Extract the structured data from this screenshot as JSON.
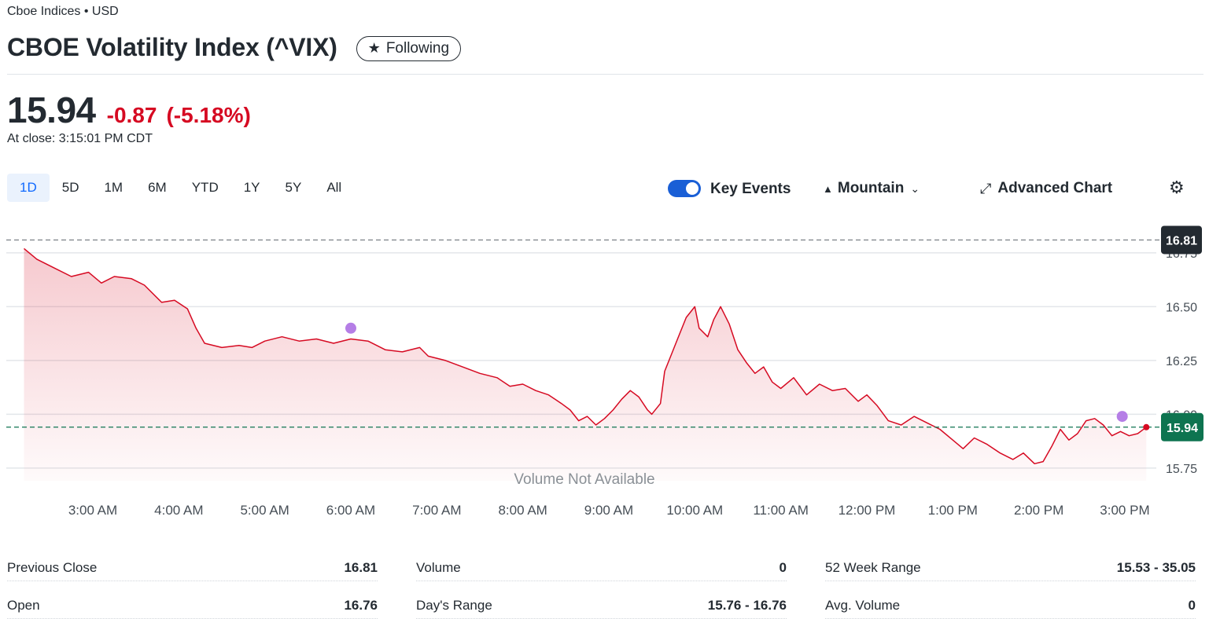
{
  "header": {
    "exchange": "Cboe Indices • USD",
    "title": "CBOE Volatility Index (^VIX)",
    "follow_label": "Following",
    "follow_icon": "star-icon"
  },
  "quote": {
    "price": "15.94",
    "change": "-0.87",
    "change_percent": "(-5.18%)",
    "close_time": "At close: 3:15:01 PM CDT",
    "change_color": "#d60a22"
  },
  "range_tabs": [
    "1D",
    "5D",
    "1M",
    "6M",
    "YTD",
    "1Y",
    "5Y",
    "All"
  ],
  "active_range": "1D",
  "toolbar": {
    "key_events_label": "Key Events",
    "key_events_on": true,
    "chart_type_label": "Mountain",
    "advanced_chart_label": "Advanced Chart",
    "settings_icon": "gear-icon"
  },
  "chart_data": {
    "type": "area",
    "y_ticks": [
      "16.75",
      "16.50",
      "16.25",
      "16.00",
      "15.75"
    ],
    "ylim": [
      15.68,
      16.83
    ],
    "x_ticks": [
      "3:00 AM",
      "4:00 AM",
      "5:00 AM",
      "6:00 AM",
      "7:00 AM",
      "8:00 AM",
      "9:00 AM",
      "10:00 AM",
      "11:00 AM",
      "12:00 PM",
      "1:00 PM",
      "2:00 PM",
      "3:00 PM"
    ],
    "x_hours": [
      3,
      4,
      5,
      6,
      7,
      8,
      9,
      10,
      11,
      12,
      13,
      14,
      15
    ],
    "previous_close": 16.81,
    "previous_close_label": "16.81",
    "last_price": 15.94,
    "last_price_label": "15.94",
    "volume_note": "Volume Not Available",
    "line_color": "#d60a22",
    "last_label_color": "#0e7450",
    "prev_close_label_color": "#232a31",
    "event_color": "#b57ee6",
    "events": [
      {
        "t": 6.0,
        "v": 16.4
      },
      {
        "t": 14.97,
        "v": 15.99
      }
    ],
    "series": [
      {
        "t": 2.2,
        "v": 16.77
      },
      {
        "t": 2.35,
        "v": 16.72
      },
      {
        "t": 2.55,
        "v": 16.68
      },
      {
        "t": 2.75,
        "v": 16.64
      },
      {
        "t": 2.95,
        "v": 16.66
      },
      {
        "t": 3.1,
        "v": 16.61
      },
      {
        "t": 3.25,
        "v": 16.64
      },
      {
        "t": 3.45,
        "v": 16.63
      },
      {
        "t": 3.6,
        "v": 16.6
      },
      {
        "t": 3.8,
        "v": 16.52
      },
      {
        "t": 3.95,
        "v": 16.53
      },
      {
        "t": 4.1,
        "v": 16.49
      },
      {
        "t": 4.2,
        "v": 16.4
      },
      {
        "t": 4.3,
        "v": 16.33
      },
      {
        "t": 4.5,
        "v": 16.31
      },
      {
        "t": 4.7,
        "v": 16.32
      },
      {
        "t": 4.85,
        "v": 16.31
      },
      {
        "t": 5.0,
        "v": 16.34
      },
      {
        "t": 5.2,
        "v": 16.36
      },
      {
        "t": 5.4,
        "v": 16.34
      },
      {
        "t": 5.6,
        "v": 16.35
      },
      {
        "t": 5.8,
        "v": 16.33
      },
      {
        "t": 6.0,
        "v": 16.35
      },
      {
        "t": 6.2,
        "v": 16.34
      },
      {
        "t": 6.4,
        "v": 16.3
      },
      {
        "t": 6.6,
        "v": 16.29
      },
      {
        "t": 6.8,
        "v": 16.31
      },
      {
        "t": 6.9,
        "v": 16.27
      },
      {
        "t": 7.1,
        "v": 16.25
      },
      {
        "t": 7.3,
        "v": 16.22
      },
      {
        "t": 7.5,
        "v": 16.19
      },
      {
        "t": 7.7,
        "v": 16.17
      },
      {
        "t": 7.85,
        "v": 16.13
      },
      {
        "t": 8.0,
        "v": 16.14
      },
      {
        "t": 8.15,
        "v": 16.11
      },
      {
        "t": 8.3,
        "v": 16.09
      },
      {
        "t": 8.45,
        "v": 16.05
      },
      {
        "t": 8.55,
        "v": 16.02
      },
      {
        "t": 8.65,
        "v": 15.97
      },
      {
        "t": 8.75,
        "v": 15.99
      },
      {
        "t": 8.85,
        "v": 15.95
      },
      {
        "t": 8.95,
        "v": 15.98
      },
      {
        "t": 9.05,
        "v": 16.02
      },
      {
        "t": 9.15,
        "v": 16.07
      },
      {
        "t": 9.25,
        "v": 16.11
      },
      {
        "t": 9.35,
        "v": 16.08
      },
      {
        "t": 9.45,
        "v": 16.02
      },
      {
        "t": 9.5,
        "v": 16.0
      },
      {
        "t": 9.6,
        "v": 16.05
      },
      {
        "t": 9.65,
        "v": 16.2
      },
      {
        "t": 9.72,
        "v": 16.27
      },
      {
        "t": 9.8,
        "v": 16.35
      },
      {
        "t": 9.9,
        "v": 16.45
      },
      {
        "t": 10.0,
        "v": 16.5
      },
      {
        "t": 10.05,
        "v": 16.4
      },
      {
        "t": 10.15,
        "v": 16.36
      },
      {
        "t": 10.22,
        "v": 16.44
      },
      {
        "t": 10.3,
        "v": 16.5
      },
      {
        "t": 10.4,
        "v": 16.42
      },
      {
        "t": 10.5,
        "v": 16.3
      },
      {
        "t": 10.6,
        "v": 16.24
      },
      {
        "t": 10.7,
        "v": 16.19
      },
      {
        "t": 10.8,
        "v": 16.22
      },
      {
        "t": 10.9,
        "v": 16.15
      },
      {
        "t": 11.0,
        "v": 16.12
      },
      {
        "t": 11.15,
        "v": 16.17
      },
      {
        "t": 11.3,
        "v": 16.09
      },
      {
        "t": 11.45,
        "v": 16.14
      },
      {
        "t": 11.6,
        "v": 16.11
      },
      {
        "t": 11.75,
        "v": 16.12
      },
      {
        "t": 11.9,
        "v": 16.06
      },
      {
        "t": 12.0,
        "v": 16.09
      },
      {
        "t": 12.12,
        "v": 16.04
      },
      {
        "t": 12.25,
        "v": 15.97
      },
      {
        "t": 12.4,
        "v": 15.95
      },
      {
        "t": 12.55,
        "v": 15.99
      },
      {
        "t": 12.7,
        "v": 15.96
      },
      {
        "t": 12.85,
        "v": 15.93
      },
      {
        "t": 13.0,
        "v": 15.88
      },
      {
        "t": 13.12,
        "v": 15.84
      },
      {
        "t": 13.25,
        "v": 15.89
      },
      {
        "t": 13.4,
        "v": 15.86
      },
      {
        "t": 13.55,
        "v": 15.82
      },
      {
        "t": 13.7,
        "v": 15.79
      },
      {
        "t": 13.82,
        "v": 15.82
      },
      {
        "t": 13.95,
        "v": 15.77
      },
      {
        "t": 14.05,
        "v": 15.78
      },
      {
        "t": 14.15,
        "v": 15.85
      },
      {
        "t": 14.25,
        "v": 15.93
      },
      {
        "t": 14.35,
        "v": 15.88
      },
      {
        "t": 14.45,
        "v": 15.91
      },
      {
        "t": 14.55,
        "v": 15.97
      },
      {
        "t": 14.65,
        "v": 15.98
      },
      {
        "t": 14.75,
        "v": 15.95
      },
      {
        "t": 14.85,
        "v": 15.9
      },
      {
        "t": 14.95,
        "v": 15.92
      },
      {
        "t": 15.05,
        "v": 15.9
      },
      {
        "t": 15.15,
        "v": 15.91
      },
      {
        "t": 15.25,
        "v": 15.94
      }
    ]
  },
  "stats": [
    [
      {
        "label": "Previous Close",
        "value": "16.81"
      },
      {
        "label": "Open",
        "value": "16.76"
      }
    ],
    [
      {
        "label": "Volume",
        "value": "0"
      },
      {
        "label": "Day's Range",
        "value": "15.76 - 16.76"
      }
    ],
    [
      {
        "label": "52 Week Range",
        "value": "15.53 - 35.05"
      },
      {
        "label": "Avg. Volume",
        "value": "0"
      }
    ]
  ]
}
